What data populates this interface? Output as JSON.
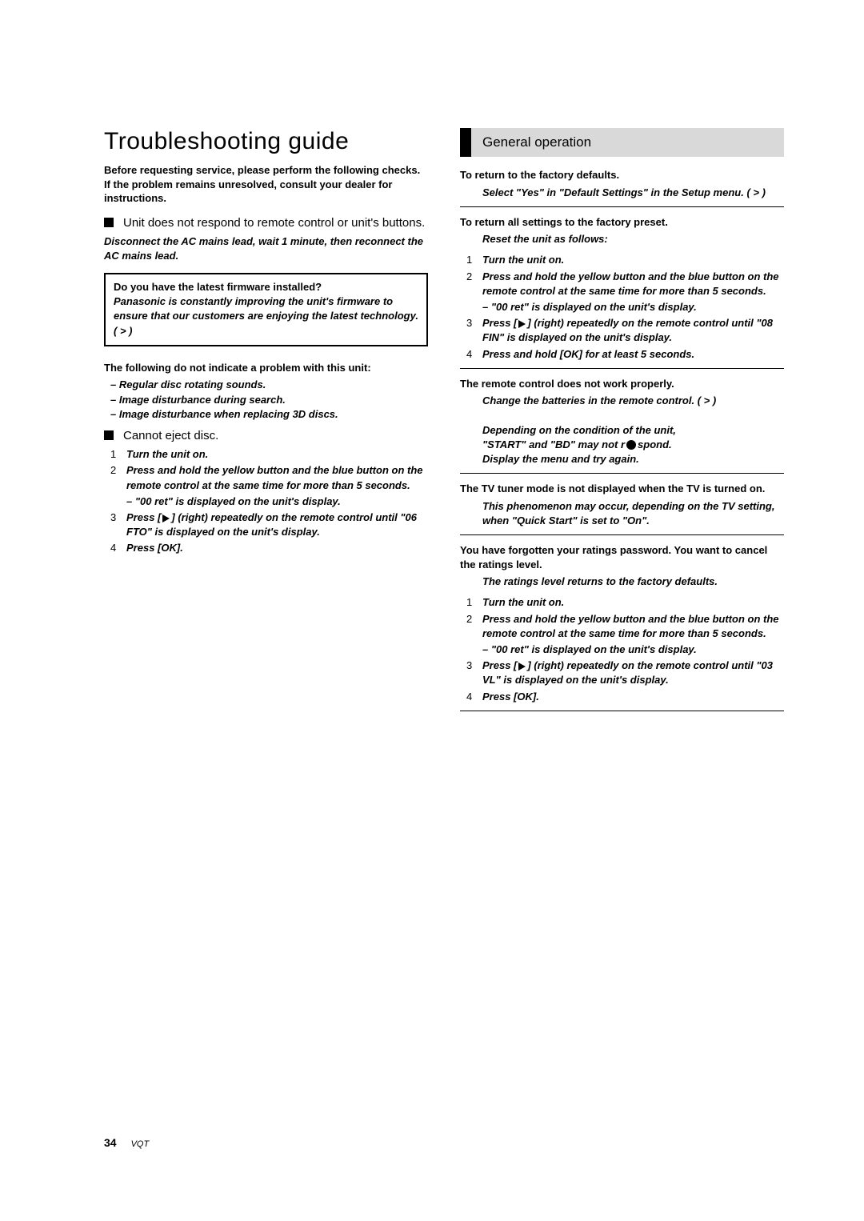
{
  "title": "Troubleshooting guide",
  "intro_lines": [
    "Before requesting service, please perform the following checks.",
    "If the problem remains unresolved, consult your dealer for instructions."
  ],
  "left": {
    "bullet1": "Unit does not respond to remote control or unit's buttons.",
    "bullet1_instr": "Disconnect the AC mains lead, wait 1 minute, then reconnect the AC mains lead.",
    "box_title": "Do you have the latest firmware installed?",
    "box_body": "Panasonic is constantly improving the unit's firmware to ensure that our customers are enjoying the latest technology. ( > )",
    "subhead2": "The following do not indicate a problem with this unit:",
    "sub_items": [
      "Regular disc rotating sounds.",
      "Image disturbance during search.",
      "Image disturbance when replacing 3D discs."
    ],
    "bullet2": "Cannot eject disc.",
    "steps_title": null,
    "steps": [
      {
        "n": "1",
        "t": "Turn the unit on."
      },
      {
        "n": "2",
        "t": "Press and hold the yellow button and the blue button on the remote control at the same time for more than 5 seconds."
      },
      {
        "n": "",
        "t": "– \"00 ret\" is displayed on the unit's display."
      },
      {
        "n": "3",
        "t": "Press [▶] (right) repeatedly on the remote control until \"06 FTO\" is displayed on the unit's display."
      },
      {
        "n": "4",
        "t": "Press [OK]."
      }
    ]
  },
  "right": {
    "banner": "General operation",
    "topic1": "To return to the factory defaults.",
    "topic1_body": "Select \"Yes\" in \"Default Settings\" in the Setup menu. ( > )",
    "topic2": "To return all settings to the factory preset.",
    "topic2_lead": "Reset the unit as follows:",
    "topic2_steps": [
      {
        "n": "1",
        "t": "Turn the unit on."
      },
      {
        "n": "2",
        "t": "Press and hold the yellow button and the blue button on the remote control at the same time for more than 5 seconds."
      },
      {
        "n": "",
        "t": "– \"00 ret\" is displayed on the unit's display."
      },
      {
        "n": "3",
        "t": "Press [▶] (right) repeatedly on the remote control until \"08 FIN\" is displayed on the unit's display."
      },
      {
        "n": "4",
        "t": "Press and hold [OK] for at least 5 seconds."
      }
    ],
    "topic3": "The remote control does not work properly.",
    "topic3_body1": "Change the batteries in the remote control. ( > )",
    "topic3_body2": "Depending on the condition of the unit, \"START\" and \"BD\" may not respond. Display the menu and try again.",
    "topic4": "The TV tuner mode is not displayed when the TV is turned on.",
    "topic4_body": "This phenomenon may occur, depending on the TV setting, when \"Quick Start\" is set to \"On\".",
    "topic5": "You have forgotten your ratings password. You want to cancel the ratings level.",
    "topic5_lead": "The ratings level returns to the factory defaults.",
    "topic5_steps": [
      {
        "n": "1",
        "t": "Turn the unit on."
      },
      {
        "n": "2",
        "t": "Press and hold the yellow button and the blue button on the remote control at the same time for more than 5 seconds."
      },
      {
        "n": "",
        "t": "– \"00 ret\" is displayed on the unit's display."
      },
      {
        "n": "3",
        "t": "Press [▶] (right) repeatedly on the remote control until \"03 VL\" is displayed on the unit's display."
      },
      {
        "n": "4",
        "t": "Press [OK]."
      }
    ]
  },
  "footer": {
    "page": "34",
    "model": "VQT"
  }
}
